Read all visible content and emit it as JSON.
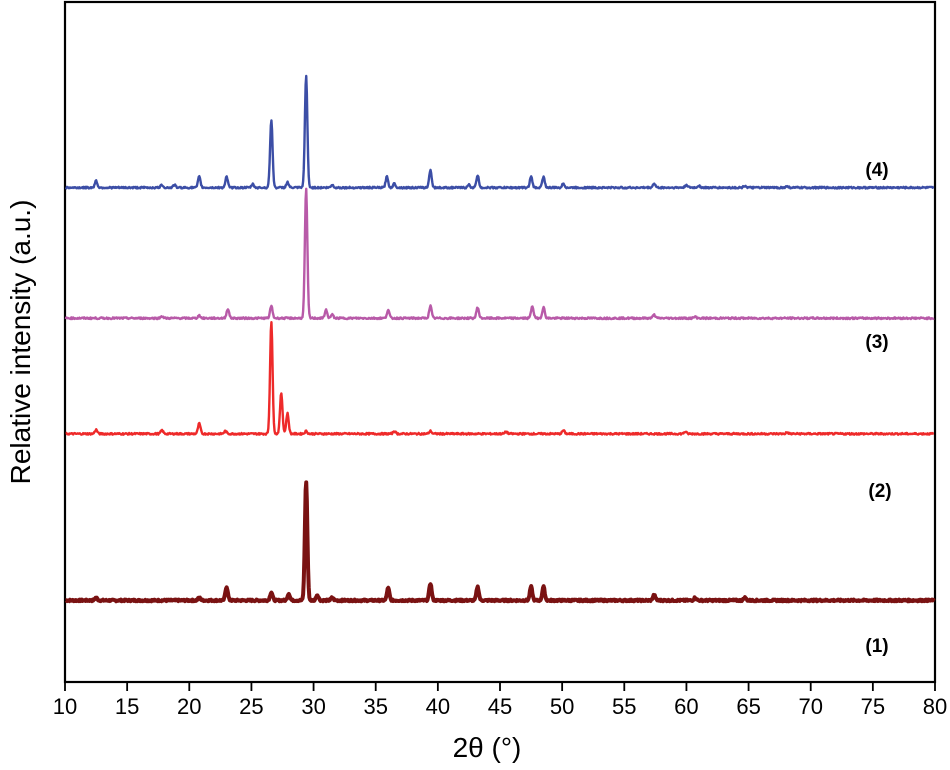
{
  "chart_data": {
    "type": "line",
    "title": "",
    "xlabel": "2θ (°)",
    "ylabel": "Relative intensity (a.u.)",
    "xlim": [
      10,
      80
    ],
    "xticks": [
      10,
      15,
      20,
      25,
      30,
      35,
      40,
      45,
      50,
      55,
      60,
      65,
      70,
      75,
      80
    ],
    "ylim": [
      0,
      1
    ],
    "grid": false,
    "legend": "labels beside curves",
    "series": [
      {
        "name": "(1)",
        "color": "#7a1212",
        "baseline": 0.12,
        "peaks": [
          [
            12.5,
            0.004
          ],
          [
            20.8,
            0.004
          ],
          [
            23.0,
            0.02
          ],
          [
            26.6,
            0.012
          ],
          [
            28.0,
            0.01
          ],
          [
            29.4,
            0.175
          ],
          [
            30.3,
            0.008
          ],
          [
            31.5,
            0.004
          ],
          [
            36.0,
            0.018
          ],
          [
            39.4,
            0.025
          ],
          [
            43.2,
            0.02
          ],
          [
            47.5,
            0.02
          ],
          [
            48.5,
            0.02
          ],
          [
            57.4,
            0.008
          ],
          [
            60.7,
            0.004
          ],
          [
            64.7,
            0.004
          ]
        ]
      },
      {
        "name": "(2)",
        "color": "#ee2a2a",
        "baseline": 0.365,
        "peaks": [
          [
            12.5,
            0.006
          ],
          [
            17.8,
            0.005
          ],
          [
            20.8,
            0.015
          ],
          [
            22.9,
            0.004
          ],
          [
            26.6,
            0.165
          ],
          [
            27.4,
            0.06
          ],
          [
            27.9,
            0.03
          ],
          [
            29.4,
            0.004
          ],
          [
            36.5,
            0.004
          ],
          [
            39.4,
            0.004
          ],
          [
            45.5,
            0.003
          ],
          [
            50.1,
            0.005
          ],
          [
            59.9,
            0.003
          ],
          [
            68.1,
            0.002
          ]
        ]
      },
      {
        "name": "(3)",
        "color": "#b85aa8",
        "baseline": 0.535,
        "peaks": [
          [
            17.8,
            0.003
          ],
          [
            20.8,
            0.004
          ],
          [
            23.1,
            0.014
          ],
          [
            26.6,
            0.018
          ],
          [
            29.4,
            0.19
          ],
          [
            31.0,
            0.012
          ],
          [
            31.5,
            0.005
          ],
          [
            36.0,
            0.012
          ],
          [
            39.4,
            0.018
          ],
          [
            43.2,
            0.016
          ],
          [
            47.6,
            0.018
          ],
          [
            48.5,
            0.016
          ],
          [
            57.4,
            0.005
          ],
          [
            60.7,
            0.002
          ]
        ]
      },
      {
        "name": "(4)",
        "color": "#3c4ea6",
        "baseline": 0.727,
        "peaks": [
          [
            12.5,
            0.01
          ],
          [
            17.8,
            0.004
          ],
          [
            18.8,
            0.004
          ],
          [
            20.8,
            0.016
          ],
          [
            23.0,
            0.016
          ],
          [
            25.1,
            0.005
          ],
          [
            26.6,
            0.1
          ],
          [
            27.9,
            0.008
          ],
          [
            29.4,
            0.165
          ],
          [
            31.5,
            0.004
          ],
          [
            35.9,
            0.016
          ],
          [
            36.5,
            0.006
          ],
          [
            39.4,
            0.026
          ],
          [
            42.5,
            0.004
          ],
          [
            43.2,
            0.018
          ],
          [
            47.5,
            0.016
          ],
          [
            48.5,
            0.016
          ],
          [
            50.1,
            0.006
          ],
          [
            57.4,
            0.006
          ],
          [
            60.0,
            0.004
          ],
          [
            61.0,
            0.003
          ],
          [
            64.7,
            0.003
          ],
          [
            68.1,
            0.002
          ]
        ]
      }
    ]
  }
}
